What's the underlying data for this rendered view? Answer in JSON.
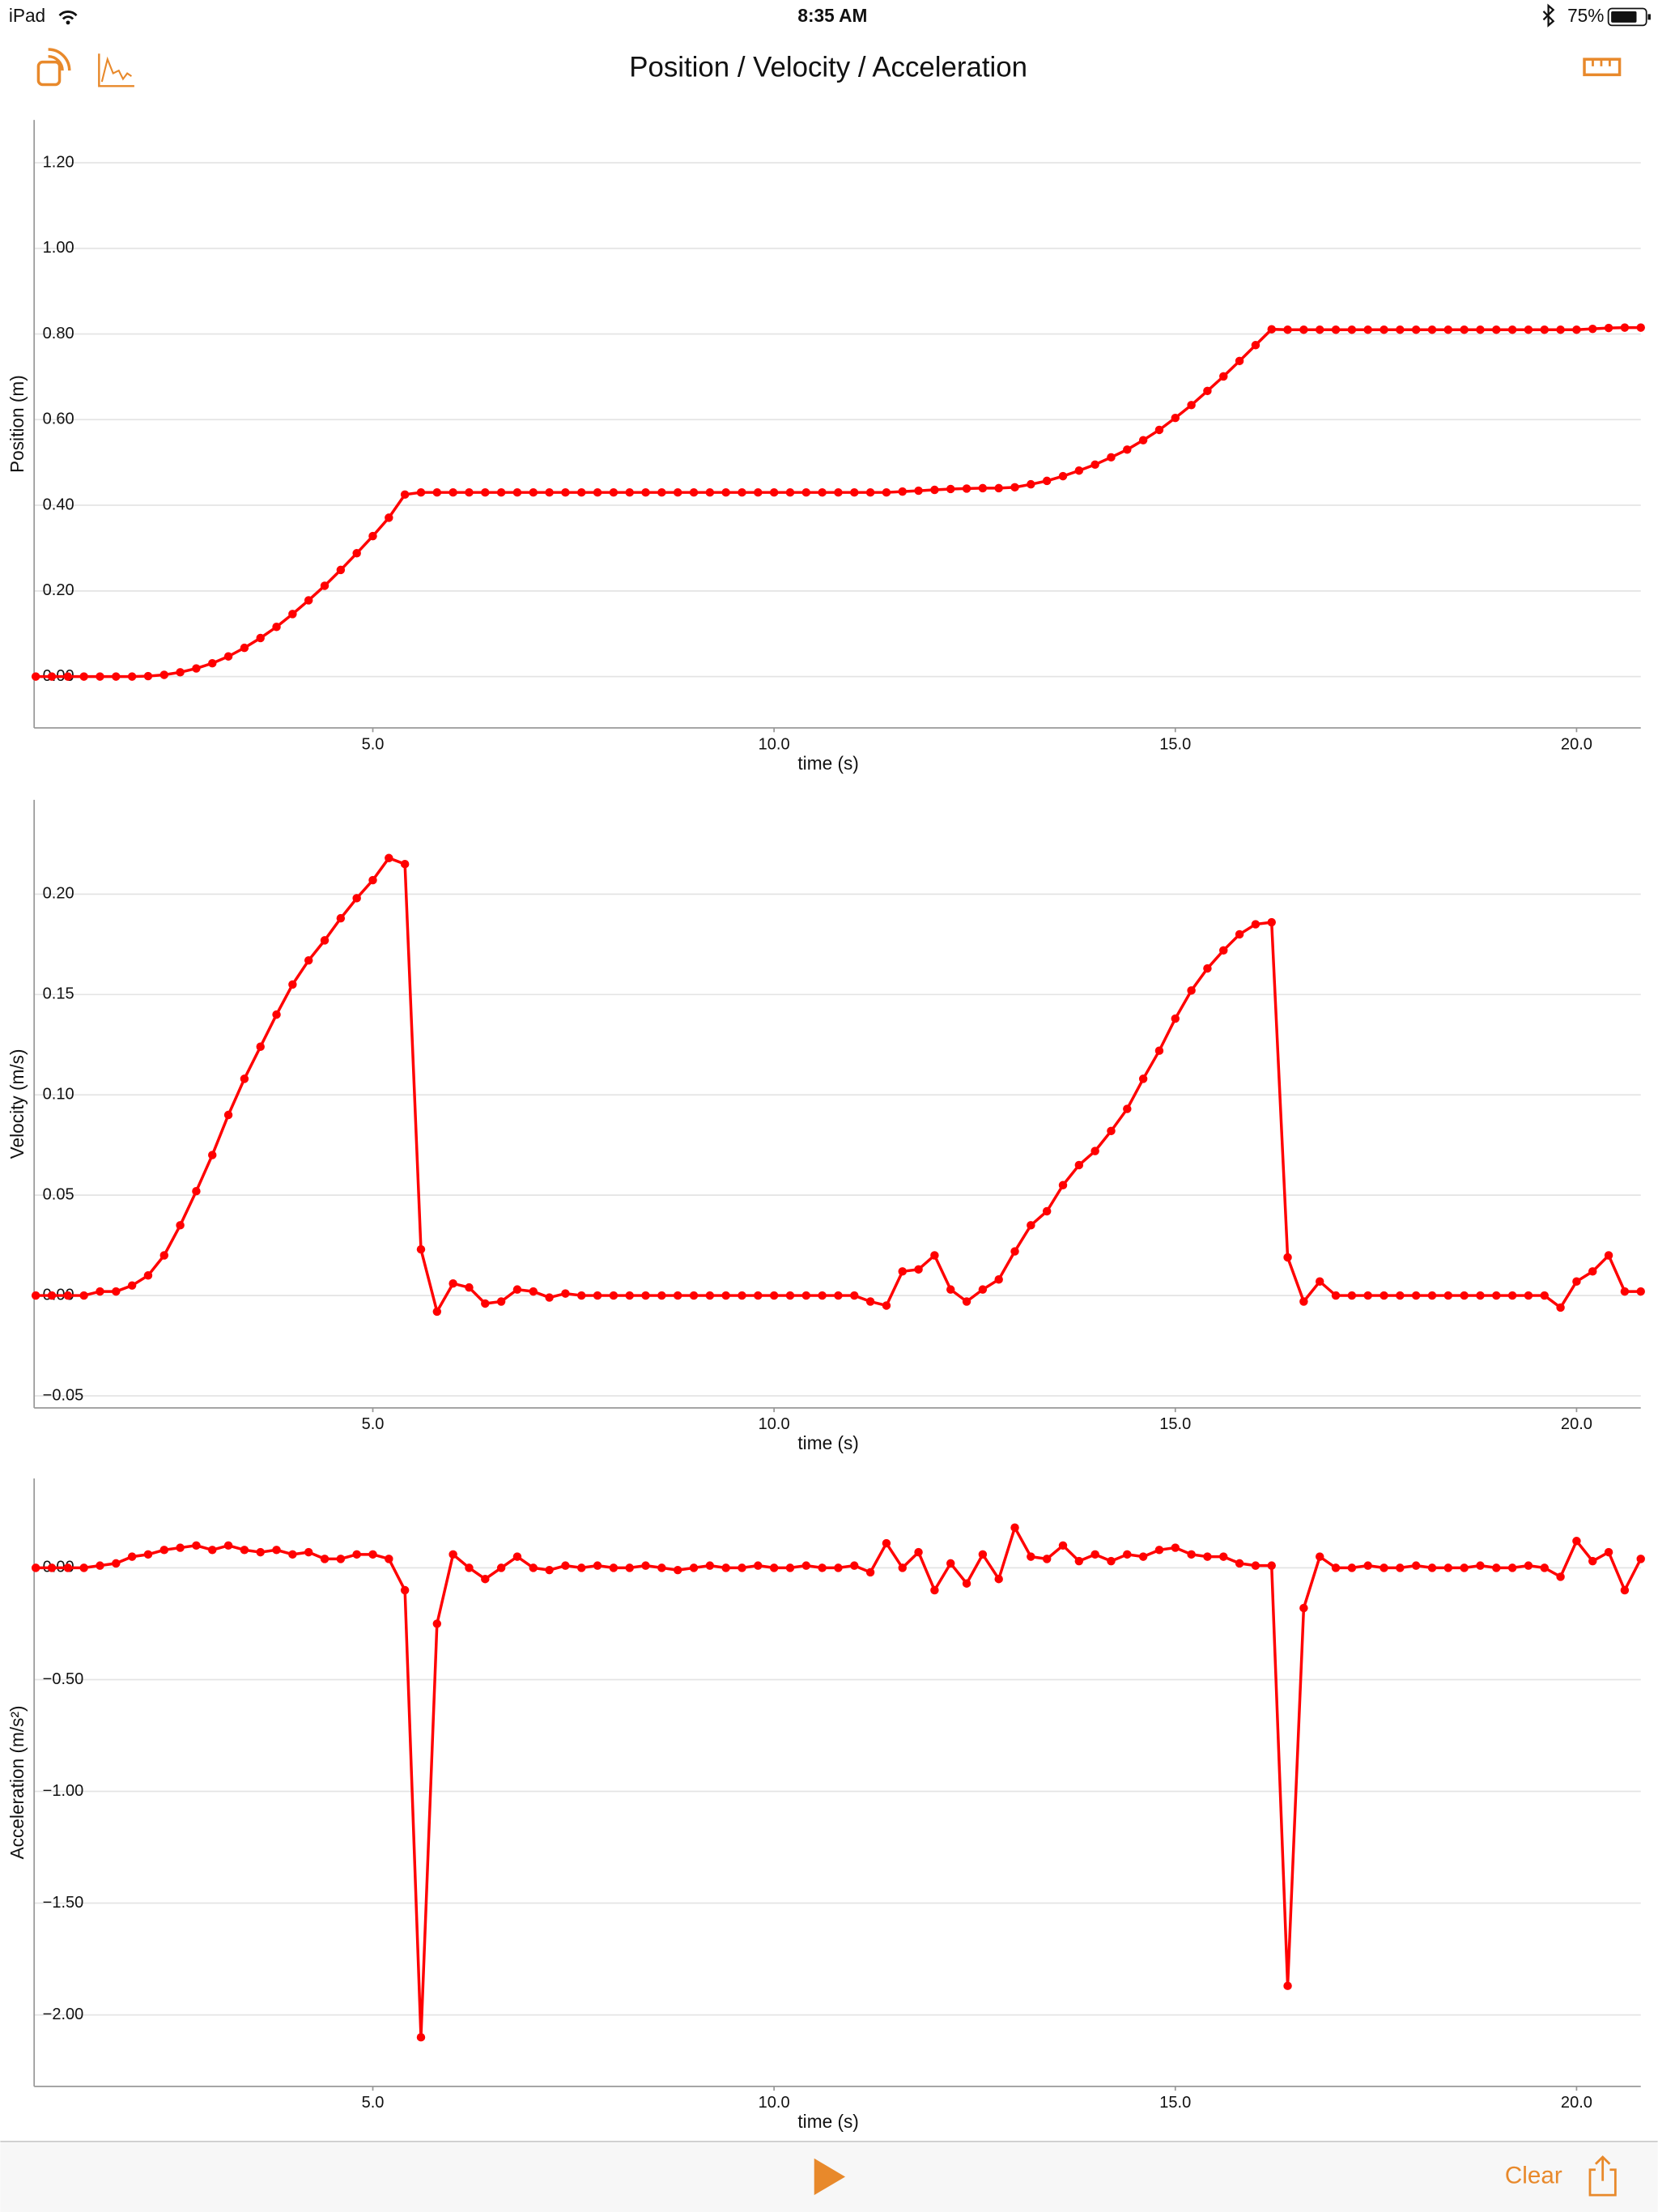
{
  "status_bar": {
    "carrier": "iPad",
    "time": "8:35 AM",
    "battery": "75%"
  },
  "header": {
    "title": "Position / Velocity / Acceleration"
  },
  "toolbar": {
    "clear": "Clear"
  },
  "chart_data": [
    {
      "type": "line",
      "xlabel": "time (s)",
      "ylabel": "Position (m)",
      "color": "#ff0000",
      "grid": true,
      "xlim": [
        0.78,
        20.8
      ],
      "ylim": [
        -0.12,
        1.3
      ],
      "xticks": [
        {
          "value": 5,
          "label": "5.0"
        },
        {
          "value": 10,
          "label": "10.0"
        },
        {
          "value": 15,
          "label": "15.0"
        },
        {
          "value": 20,
          "label": "20.0"
        }
      ],
      "yticks": [
        {
          "value": 0,
          "label": "0.00"
        },
        {
          "value": 0.2,
          "label": "0.20"
        },
        {
          "value": 0.4,
          "label": "0.40"
        },
        {
          "value": 0.6,
          "label": "0.60"
        },
        {
          "value": 0.8,
          "label": "0.80"
        },
        {
          "value": 1,
          "label": "1.00"
        },
        {
          "value": 1.2,
          "label": "1.20"
        }
      ],
      "x": [
        0.8,
        1,
        1.2,
        1.4,
        1.6,
        1.8,
        2,
        2.2,
        2.4,
        2.6,
        2.8,
        3,
        3.2,
        3.4,
        3.6,
        3.8,
        4,
        4.2,
        4.4,
        4.6,
        4.8,
        5,
        5.2,
        5.4,
        5.6,
        5.8,
        6,
        6.2,
        6.4,
        6.6,
        6.8,
        7,
        7.2,
        7.4,
        7.6,
        7.8,
        8,
        8.2,
        8.4,
        8.6,
        8.8,
        9,
        9.2,
        9.4,
        9.6,
        9.8,
        10,
        10.2,
        10.4,
        10.6,
        10.8,
        11,
        11.2,
        11.4,
        11.6,
        11.8,
        12,
        12.2,
        12.4,
        12.6,
        12.8,
        13,
        13.2,
        13.4,
        13.6,
        13.8,
        14,
        14.2,
        14.4,
        14.6,
        14.8,
        15,
        15.2,
        15.4,
        15.6,
        15.8,
        16,
        16.2,
        16.4,
        16.6,
        16.8,
        17,
        17.2,
        17.4,
        17.6,
        17.8,
        18,
        18.2,
        18.4,
        18.6,
        18.8,
        19,
        19.2,
        19.4,
        19.6,
        19.8,
        20,
        20.2,
        20.4,
        20.6,
        20.8
      ],
      "values": [
        0,
        0,
        0,
        0,
        0,
        0,
        0,
        0.001,
        0.004,
        0.01,
        0.019,
        0.031,
        0.047,
        0.067,
        0.09,
        0.116,
        0.146,
        0.178,
        0.212,
        0.249,
        0.288,
        0.328,
        0.371,
        0.425,
        0.43,
        0.43,
        0.43,
        0.43,
        0.43,
        0.43,
        0.43,
        0.43,
        0.43,
        0.43,
        0.43,
        0.43,
        0.43,
        0.43,
        0.43,
        0.43,
        0.43,
        0.43,
        0.43,
        0.43,
        0.43,
        0.43,
        0.43,
        0.43,
        0.43,
        0.43,
        0.43,
        0.43,
        0.43,
        0.43,
        0.432,
        0.434,
        0.436,
        0.438,
        0.439,
        0.44,
        0.44,
        0.442,
        0.449,
        0.457,
        0.468,
        0.481,
        0.495,
        0.512,
        0.53,
        0.552,
        0.576,
        0.604,
        0.634,
        0.667,
        0.701,
        0.737,
        0.774,
        0.811,
        0.81,
        0.81,
        0.81,
        0.81,
        0.81,
        0.81,
        0.81,
        0.81,
        0.81,
        0.81,
        0.81,
        0.81,
        0.81,
        0.81,
        0.81,
        0.81,
        0.81,
        0.81,
        0.81,
        0.812,
        0.814,
        0.815,
        0.815
      ]
    },
    {
      "type": "line",
      "xlabel": "time (s)",
      "ylabel": "Velocity (m/s)",
      "color": "#ff0000",
      "grid": true,
      "xlim": [
        0.78,
        20.8
      ],
      "ylim": [
        -0.056,
        0.247
      ],
      "xticks": [
        {
          "value": 5,
          "label": "5.0"
        },
        {
          "value": 10,
          "label": "10.0"
        },
        {
          "value": 15,
          "label": "15.0"
        },
        {
          "value": 20,
          "label": "20.0"
        }
      ],
      "yticks": [
        {
          "value": -0.05,
          "label": "−0.05"
        },
        {
          "value": 0,
          "label": "0.00"
        },
        {
          "value": 0.05,
          "label": "0.05"
        },
        {
          "value": 0.1,
          "label": "0.10"
        },
        {
          "value": 0.15,
          "label": "0.15"
        },
        {
          "value": 0.2,
          "label": "0.20"
        }
      ],
      "x": [
        0.8,
        1,
        1.2,
        1.4,
        1.6,
        1.8,
        2,
        2.2,
        2.4,
        2.6,
        2.8,
        3,
        3.2,
        3.4,
        3.6,
        3.8,
        4,
        4.2,
        4.4,
        4.6,
        4.8,
        5,
        5.2,
        5.4,
        5.6,
        5.8,
        6,
        6.2,
        6.4,
        6.6,
        6.8,
        7,
        7.2,
        7.4,
        7.6,
        7.8,
        8,
        8.2,
        8.4,
        8.6,
        8.8,
        9,
        9.2,
        9.4,
        9.6,
        9.8,
        10,
        10.2,
        10.4,
        10.6,
        10.8,
        11,
        11.2,
        11.4,
        11.6,
        11.8,
        12,
        12.2,
        12.4,
        12.6,
        12.8,
        13,
        13.2,
        13.4,
        13.6,
        13.8,
        14,
        14.2,
        14.4,
        14.6,
        14.8,
        15,
        15.2,
        15.4,
        15.6,
        15.8,
        16,
        16.2,
        16.4,
        16.6,
        16.8,
        17,
        17.2,
        17.4,
        17.6,
        17.8,
        18,
        18.2,
        18.4,
        18.6,
        18.8,
        19,
        19.2,
        19.4,
        19.6,
        19.8,
        20,
        20.2,
        20.4,
        20.6,
        20.8
      ],
      "values": [
        0,
        0,
        0,
        0,
        0.002,
        0.002,
        0.005,
        0.01,
        0.02,
        0.035,
        0.052,
        0.07,
        0.09,
        0.108,
        0.124,
        0.14,
        0.155,
        0.167,
        0.177,
        0.188,
        0.198,
        0.207,
        0.218,
        0.215,
        0.023,
        -0.008,
        0.006,
        0.004,
        -0.004,
        -0.003,
        0.003,
        0.002,
        -0.001,
        0.001,
        0,
        0,
        0,
        0,
        0,
        0,
        0,
        0,
        0,
        0,
        0,
        0,
        0,
        0,
        0,
        0,
        0,
        0,
        -0.003,
        -0.005,
        0.012,
        0.013,
        0.02,
        0.003,
        -0.003,
        0.003,
        0.008,
        0.022,
        0.035,
        0.042,
        0.055,
        0.065,
        0.072,
        0.082,
        0.093,
        0.108,
        0.122,
        0.138,
        0.152,
        0.163,
        0.172,
        0.18,
        0.185,
        0.186,
        0.019,
        -0.003,
        0.007,
        0,
        0,
        0,
        0,
        0,
        0,
        0,
        0,
        0,
        0,
        0,
        0,
        0,
        0,
        -0.006,
        0.007,
        0.012,
        0.02,
        0.002,
        0.002
      ]
    },
    {
      "type": "line",
      "xlabel": "time (s)",
      "ylabel": "Acceleration (m/s²)",
      "color": "#ff0000",
      "grid": true,
      "xlim": [
        0.78,
        20.8
      ],
      "ylim": [
        -2.32,
        0.4
      ],
      "xticks": [
        {
          "value": 5,
          "label": "5.0"
        },
        {
          "value": 10,
          "label": "10.0"
        },
        {
          "value": 15,
          "label": "15.0"
        },
        {
          "value": 20,
          "label": "20.0"
        }
      ],
      "yticks": [
        {
          "value": -2,
          "label": "−2.00"
        },
        {
          "value": -1.5,
          "label": "−1.50"
        },
        {
          "value": -1,
          "label": "−1.00"
        },
        {
          "value": -0.5,
          "label": "−0.50"
        },
        {
          "value": 0,
          "label": "0.00"
        }
      ],
      "x": [
        0.8,
        1,
        1.2,
        1.4,
        1.6,
        1.8,
        2,
        2.2,
        2.4,
        2.6,
        2.8,
        3,
        3.2,
        3.4,
        3.6,
        3.8,
        4,
        4.2,
        4.4,
        4.6,
        4.8,
        5,
        5.2,
        5.4,
        5.6,
        5.8,
        6,
        6.2,
        6.4,
        6.6,
        6.8,
        7,
        7.2,
        7.4,
        7.6,
        7.8,
        8,
        8.2,
        8.4,
        8.6,
        8.8,
        9,
        9.2,
        9.4,
        9.6,
        9.8,
        10,
        10.2,
        10.4,
        10.6,
        10.8,
        11,
        11.2,
        11.4,
        11.6,
        11.8,
        12,
        12.2,
        12.4,
        12.6,
        12.8,
        13,
        13.2,
        13.4,
        13.6,
        13.8,
        14,
        14.2,
        14.4,
        14.6,
        14.8,
        15,
        15.2,
        15.4,
        15.6,
        15.8,
        16,
        16.2,
        16.4,
        16.6,
        16.8,
        17,
        17.2,
        17.4,
        17.6,
        17.8,
        18,
        18.2,
        18.4,
        18.6,
        18.8,
        19,
        19.2,
        19.4,
        19.6,
        19.8,
        20,
        20.2,
        20.4,
        20.6,
        20.8
      ],
      "values": [
        0,
        0,
        0,
        0,
        0.01,
        0.02,
        0.05,
        0.06,
        0.08,
        0.09,
        0.1,
        0.08,
        0.1,
        0.08,
        0.07,
        0.08,
        0.06,
        0.07,
        0.04,
        0.04,
        0.06,
        0.06,
        0.04,
        -0.1,
        -2.1,
        -0.25,
        0.06,
        0,
        -0.05,
        0,
        0.05,
        0,
        -0.01,
        0.01,
        0,
        0.01,
        0,
        0,
        0.01,
        0,
        -0.01,
        0,
        0.01,
        0,
        0,
        0.01,
        0,
        0,
        0.01,
        0,
        0,
        0.01,
        -0.02,
        0.11,
        0,
        0.07,
        -0.1,
        0.02,
        -0.07,
        0.06,
        -0.05,
        0.18,
        0.05,
        0.04,
        0.1,
        0.03,
        0.06,
        0.03,
        0.06,
        0.05,
        0.08,
        0.09,
        0.06,
        0.05,
        0.05,
        0.02,
        0.01,
        0.01,
        -1.87,
        -0.18,
        0.05,
        0,
        0,
        0.01,
        0,
        0,
        0.01,
        0,
        0,
        0,
        0.01,
        0,
        0,
        0.01,
        0,
        -0.04,
        0.12,
        0.03,
        0.07,
        -0.1,
        0.04
      ]
    }
  ]
}
